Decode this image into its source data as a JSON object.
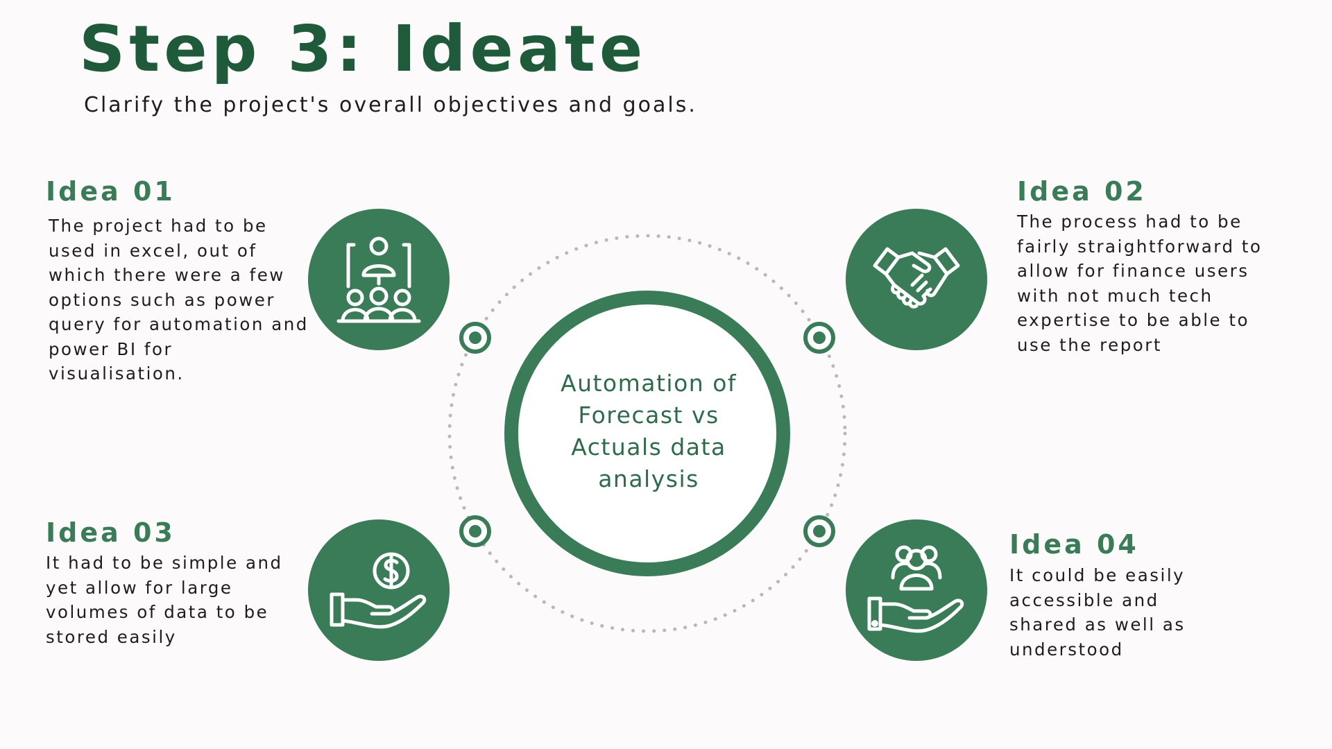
{
  "header": {
    "title": "Step 3: Ideate",
    "subtitle": "Clarify the project's overall objectives and goals."
  },
  "center": {
    "lines": [
      "Automation of",
      "Forecast vs",
      "Actuals data",
      "analysis"
    ]
  },
  "ideas": [
    {
      "heading": "Idea 01",
      "icon": "organization-hierarchy-icon",
      "lines": [
        "The project had to be",
        "used in excel, out of",
        "which there were a few",
        "options such as power",
        "query for automation and",
        "power BI for",
        "visualisation."
      ]
    },
    {
      "heading": "Idea 02",
      "icon": "handshake-icon",
      "lines": [
        "The process had to be",
        "fairly straightforward to",
        "allow for finance users",
        "with not much tech",
        "expertise to be able to",
        "use the report"
      ]
    },
    {
      "heading": "Idea 03",
      "icon": "dollar-hand-icon",
      "lines": [
        "It had to be simple and",
        "yet allow for large",
        "volumes of data to be",
        "stored easily"
      ]
    },
    {
      "heading": "Idea 04",
      "icon": "people-hand-icon",
      "lines": [
        "It could be easily",
        "accessible and",
        "shared as well as",
        "understood"
      ]
    }
  ],
  "colors": {
    "title": "#1f5a3b",
    "accent": "#3a7b58",
    "ring": "#3a7b58",
    "dotted_orbit": "#b8b8b8",
    "background": "#fcfafb"
  }
}
